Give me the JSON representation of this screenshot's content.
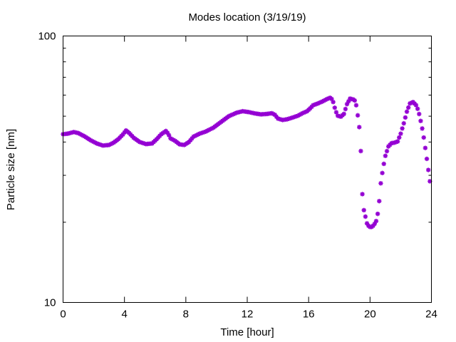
{
  "chart_data": {
    "type": "scatter",
    "title": "Modes location (3/19/19)",
    "xlabel": "Time [hour]",
    "ylabel": "Particle size [nm]",
    "xlim": [
      0,
      24
    ],
    "ylim": [
      10,
      100
    ],
    "yscale": "log",
    "xticks": [
      0,
      4,
      8,
      12,
      16,
      20,
      24
    ],
    "xtick_labels": [
      "0",
      "4",
      "8",
      "12",
      "16",
      "20",
      "24"
    ],
    "yticks": [
      10,
      100
    ],
    "ytick_labels": [
      "10",
      "100"
    ],
    "grid": false,
    "marker_color": "#9400D3",
    "anchors": [
      [
        0.0,
        42.8
      ],
      [
        0.3,
        43.0
      ],
      [
        0.7,
        43.6
      ],
      [
        1.0,
        43.2
      ],
      [
        1.4,
        42.0
      ],
      [
        1.8,
        40.6
      ],
      [
        2.2,
        39.5
      ],
      [
        2.6,
        38.8
      ],
      [
        3.0,
        39.0
      ],
      [
        3.3,
        39.8
      ],
      [
        3.6,
        41.0
      ],
      [
        3.9,
        42.7
      ],
      [
        4.1,
        44.2
      ],
      [
        4.3,
        43.3
      ],
      [
        4.6,
        41.5
      ],
      [
        5.0,
        40.0
      ],
      [
        5.4,
        39.3
      ],
      [
        5.8,
        39.5
      ],
      [
        6.1,
        41.0
      ],
      [
        6.4,
        42.8
      ],
      [
        6.7,
        44.0
      ],
      [
        6.85,
        43.0
      ],
      [
        7.0,
        41.3
      ],
      [
        7.3,
        40.4
      ],
      [
        7.6,
        39.2
      ],
      [
        7.9,
        39.0
      ],
      [
        8.2,
        40.0
      ],
      [
        8.5,
        41.9
      ],
      [
        8.9,
        43.0
      ],
      [
        9.3,
        43.8
      ],
      [
        9.8,
        45.3
      ],
      [
        10.3,
        47.6
      ],
      [
        10.8,
        50.0
      ],
      [
        11.3,
        51.5
      ],
      [
        11.7,
        52.2
      ],
      [
        12.1,
        51.8
      ],
      [
        12.5,
        51.2
      ],
      [
        12.9,
        50.8
      ],
      [
        13.3,
        51.0
      ],
      [
        13.6,
        51.3
      ],
      [
        13.8,
        50.6
      ],
      [
        14.0,
        49.0
      ],
      [
        14.3,
        48.4
      ],
      [
        14.6,
        48.7
      ],
      [
        14.9,
        49.3
      ],
      [
        15.3,
        50.2
      ],
      [
        15.6,
        51.3
      ],
      [
        15.9,
        52.2
      ],
      [
        16.1,
        53.5
      ],
      [
        16.3,
        55.0
      ],
      [
        16.6,
        55.8
      ],
      [
        16.9,
        56.8
      ],
      [
        17.2,
        58.0
      ],
      [
        17.45,
        58.8
      ],
      [
        17.6,
        56.5
      ],
      [
        17.75,
        52.5
      ],
      [
        17.9,
        50.2
      ],
      [
        18.1,
        49.8
      ],
      [
        18.3,
        51.0
      ],
      [
        18.5,
        55.5
      ],
      [
        18.7,
        58.2
      ],
      [
        18.9,
        57.8
      ],
      [
        19.05,
        57.0
      ],
      [
        19.15,
        53.0
      ],
      [
        19.3,
        45.5
      ],
      [
        19.4,
        37.0
      ],
      [
        19.5,
        25.5
      ],
      [
        19.6,
        22.2
      ],
      [
        19.7,
        21.0
      ],
      [
        19.8,
        19.8
      ],
      [
        19.95,
        19.2
      ],
      [
        20.1,
        19.2
      ],
      [
        20.25,
        19.5
      ],
      [
        20.4,
        20.2
      ],
      [
        20.5,
        21.5
      ],
      [
        20.6,
        24.0
      ],
      [
        20.7,
        28.0
      ],
      [
        20.85,
        32.0
      ],
      [
        21.0,
        35.5
      ],
      [
        21.2,
        38.5
      ],
      [
        21.4,
        39.6
      ],
      [
        21.6,
        39.8
      ],
      [
        21.8,
        40.2
      ],
      [
        22.0,
        43.0
      ],
      [
        22.2,
        47.0
      ],
      [
        22.4,
        52.0
      ],
      [
        22.6,
        55.8
      ],
      [
        22.8,
        56.5
      ],
      [
        23.0,
        55.0
      ],
      [
        23.15,
        52.5
      ],
      [
        23.3,
        48.0
      ],
      [
        23.45,
        43.5
      ],
      [
        23.6,
        38.0
      ],
      [
        23.75,
        33.0
      ],
      [
        23.9,
        28.5
      ]
    ]
  }
}
